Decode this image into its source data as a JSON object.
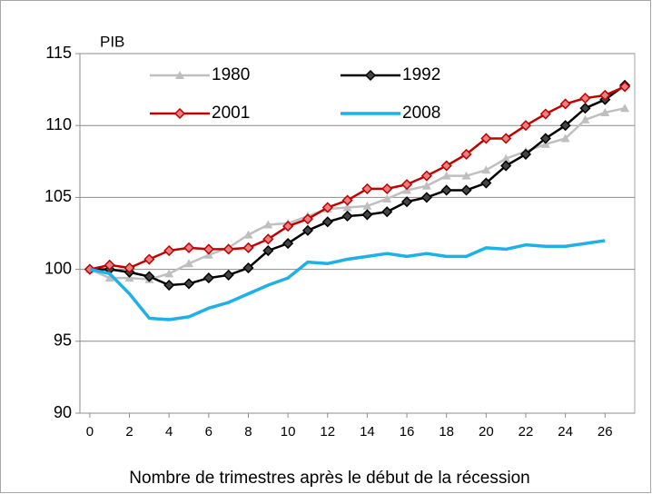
{
  "chart_data": {
    "type": "line",
    "y_label": "PIB",
    "x_label": "Nombre de trimestres après le début de la récession",
    "x": [
      0,
      1,
      2,
      3,
      4,
      5,
      6,
      7,
      8,
      9,
      10,
      11,
      12,
      13,
      14,
      15,
      16,
      17,
      18,
      19,
      20,
      21,
      22,
      23,
      24,
      25,
      26,
      27
    ],
    "xlim": [
      -0.5,
      27.5
    ],
    "xticks": [
      0,
      2,
      4,
      6,
      8,
      10,
      12,
      14,
      16,
      18,
      20,
      22,
      24,
      26
    ],
    "ylim": [
      90,
      115
    ],
    "yticks": [
      90,
      95,
      100,
      105,
      110,
      115
    ],
    "grid": true,
    "series": [
      {
        "name": "1980",
        "color": "#bfbfbf",
        "marker": "triangle",
        "values": [
          100,
          99.4,
          99.4,
          99.3,
          99.7,
          100.4,
          101,
          101.5,
          102.4,
          103.1,
          103.2,
          103.7,
          104.2,
          104.3,
          104.4,
          104.9,
          105.5,
          105.8,
          106.5,
          106.5,
          106.9,
          107.7,
          108.2,
          108.7,
          109.1,
          110.4,
          110.9,
          111.2
        ]
      },
      {
        "name": "1992",
        "color": "#000000",
        "marker": "diamond",
        "values": [
          100,
          100,
          99.8,
          99.5,
          98.9,
          99,
          99.4,
          99.6,
          100.1,
          101.3,
          101.8,
          102.7,
          103.3,
          103.7,
          103.8,
          104,
          104.7,
          105,
          105.5,
          105.5,
          106,
          107.2,
          108,
          109.1,
          110,
          111.2,
          111.8,
          112.8
        ]
      },
      {
        "name": "2001",
        "color": "#c00000",
        "marker": "diamond",
        "values": [
          100,
          100.3,
          100.1,
          100.7,
          101.3,
          101.5,
          101.4,
          101.4,
          101.5,
          102.1,
          103,
          103.5,
          104.3,
          104.8,
          105.6,
          105.6,
          105.9,
          106.5,
          107.2,
          108,
          109.1,
          109.1,
          110,
          110.8,
          111.5,
          111.9,
          112.1,
          112.7
        ]
      },
      {
        "name": "2008",
        "color": "#1fb0e8",
        "marker": null,
        "values": [
          100,
          99.7,
          98.3,
          96.6,
          96.5,
          96.7,
          97.3,
          97.7,
          98.3,
          98.9,
          99.4,
          100.5,
          100.4,
          100.7,
          100.9,
          101.1,
          100.9,
          101.1,
          100.9,
          100.9,
          101.5,
          101.4,
          101.7,
          101.6,
          101.6,
          101.8,
          102.0,
          null
        ]
      }
    ]
  }
}
